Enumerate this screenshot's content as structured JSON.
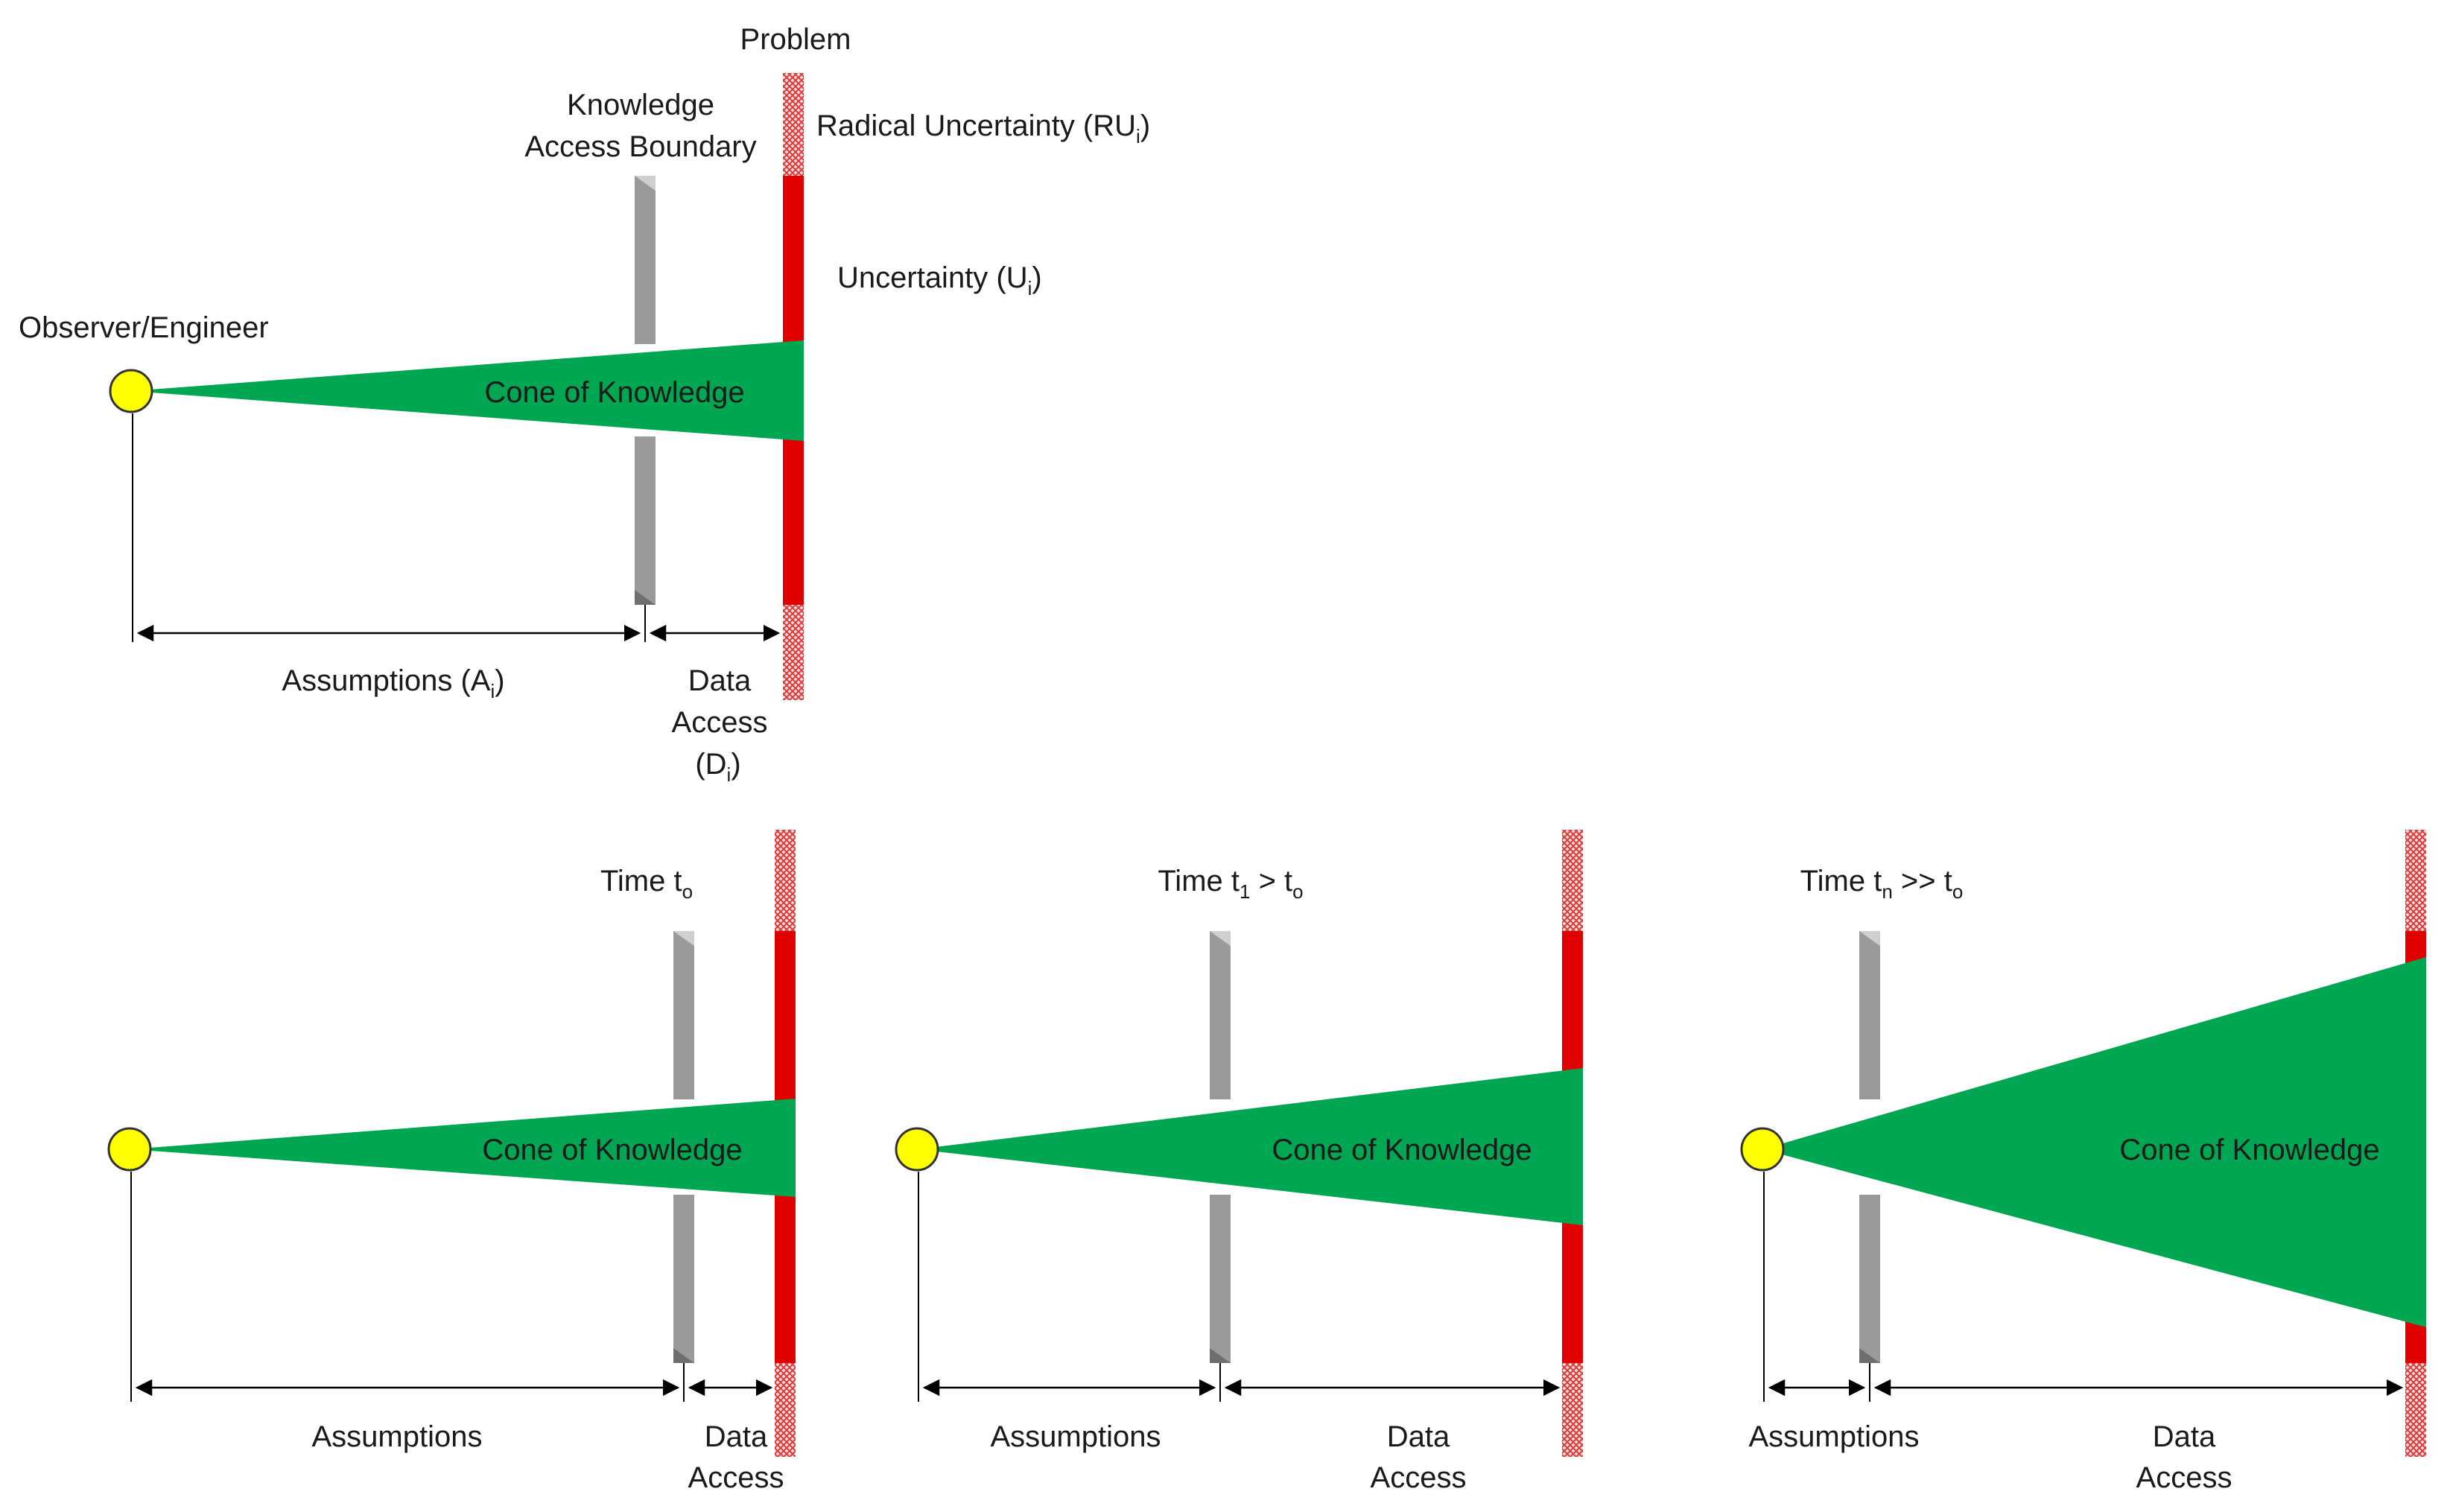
{
  "colors": {
    "cone": "#00a651",
    "uncertainty": "#e00000",
    "radical_hatch": "#e35a5a",
    "boundary": "#9a9a9a",
    "observer": "#ffff00"
  },
  "top": {
    "observer_label": "Observer/Engineer",
    "problem_label": "Problem",
    "boundary_label_line1": "Knowledge",
    "boundary_label_line2": "Access Boundary",
    "radical_label": "Radical Uncertainty  (RU",
    "radical_sub": "i",
    "radical_close": ")",
    "uncertainty_label": "Uncertainty  (U",
    "uncertainty_sub": "i",
    "uncertainty_close": ")",
    "cone_label": "Cone of Knowledge",
    "assumptions_label": "Assumptions  (A",
    "assumptions_sub": "i",
    "assumptions_close": ")",
    "data_line1": "Data",
    "data_line2": "Access",
    "data_line3": "(D",
    "data_sub": "i",
    "data_close": ")"
  },
  "panels": [
    {
      "time_main": "Time t",
      "time_sub": "o",
      "time_rest": "",
      "time_rest_sub": "",
      "cone_label": "Cone of Knowledge",
      "assumptions_label": "Assumptions",
      "data_line1": "Data",
      "data_line2": "Access"
    },
    {
      "time_main": "Time t",
      "time_sub": "1",
      "time_rest": " > t",
      "time_rest_sub": "o",
      "cone_label": "Cone of Knowledge",
      "assumptions_label": "Assumptions",
      "data_line1": "Data",
      "data_line2": "Access"
    },
    {
      "time_main": "Time t",
      "time_sub": "n",
      "time_rest": " >> t",
      "time_rest_sub": "o",
      "cone_label": "Cone of Knowledge",
      "assumptions_label": "Assumptions",
      "data_line1": "Data",
      "data_line2": "Access"
    }
  ]
}
